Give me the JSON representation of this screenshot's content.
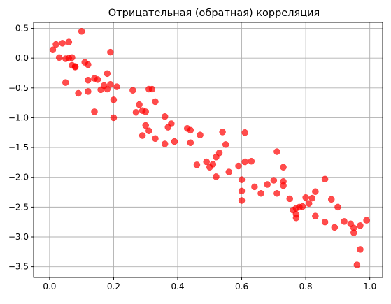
{
  "chart_data": {
    "type": "scatter",
    "title": "Отрицательная (обратная) корреляция",
    "xlabel": "",
    "ylabel": "",
    "xlim": [
      -0.05,
      1.04
    ],
    "ylim": [
      -3.68,
      0.6
    ],
    "x_ticks": [
      0.0,
      0.2,
      0.4,
      0.6,
      0.8,
      1.0
    ],
    "x_tick_labels": [
      "0.0",
      "0.2",
      "0.4",
      "0.6",
      "0.8",
      "1.0"
    ],
    "y_ticks": [
      0.5,
      0.0,
      -0.5,
      -1.0,
      -1.5,
      -2.0,
      -2.5,
      -3.0,
      -3.5
    ],
    "y_tick_labels": [
      "0.5",
      "0.0",
      "−0.5",
      "−1.0",
      "−1.5",
      "−2.0",
      "−2.5",
      "−3.0",
      "−3.5"
    ],
    "grid": true,
    "marker_color": "#ff0000",
    "marker_alpha": 0.7,
    "points": [
      [
        0.01,
        0.14
      ],
      [
        0.02,
        0.23
      ],
      [
        0.03,
        0.01
      ],
      [
        0.04,
        0.25
      ],
      [
        0.05,
        -0.01
      ],
      [
        0.06,
        0.27
      ],
      [
        0.05,
        -0.41
      ],
      [
        0.06,
        0.0
      ],
      [
        0.07,
        -0.12
      ],
      [
        0.07,
        0.01
      ],
      [
        0.08,
        -0.15
      ],
      [
        0.08,
        -0.14
      ],
      [
        0.09,
        -0.59
      ],
      [
        0.1,
        0.45
      ],
      [
        0.11,
        -0.07
      ],
      [
        0.12,
        -0.11
      ],
      [
        0.12,
        -0.56
      ],
      [
        0.12,
        -0.37
      ],
      [
        0.14,
        -0.34
      ],
      [
        0.14,
        -0.9
      ],
      [
        0.15,
        -0.36
      ],
      [
        0.16,
        -0.53
      ],
      [
        0.17,
        -0.46
      ],
      [
        0.18,
        -0.26
      ],
      [
        0.18,
        -0.52
      ],
      [
        0.19,
        0.1
      ],
      [
        0.19,
        -0.44
      ],
      [
        0.2,
        -0.7
      ],
      [
        0.2,
        -1.0
      ],
      [
        0.21,
        -0.48
      ],
      [
        0.26,
        -0.54
      ],
      [
        0.27,
        -0.91
      ],
      [
        0.28,
        -0.78
      ],
      [
        0.29,
        -0.88
      ],
      [
        0.3,
        -1.13
      ],
      [
        0.3,
        -0.9
      ],
      [
        0.29,
        -1.3
      ],
      [
        0.31,
        -1.22
      ],
      [
        0.31,
        -0.52
      ],
      [
        0.32,
        -0.52
      ],
      [
        0.33,
        -0.73
      ],
      [
        0.33,
        -1.35
      ],
      [
        0.36,
        -1.44
      ],
      [
        0.36,
        -0.98
      ],
      [
        0.37,
        -1.16
      ],
      [
        0.38,
        -1.1
      ],
      [
        0.39,
        -1.4
      ],
      [
        0.43,
        -1.18
      ],
      [
        0.44,
        -1.21
      ],
      [
        0.44,
        -1.42
      ],
      [
        0.46,
        -1.79
      ],
      [
        0.47,
        -1.29
      ],
      [
        0.49,
        -1.74
      ],
      [
        0.5,
        -1.83
      ],
      [
        0.51,
        -1.78
      ],
      [
        0.52,
        -1.99
      ],
      [
        0.52,
        -1.66
      ],
      [
        0.53,
        -1.59
      ],
      [
        0.54,
        -1.24
      ],
      [
        0.55,
        -1.45
      ],
      [
        0.56,
        -1.91
      ],
      [
        0.59,
        -1.81
      ],
      [
        0.6,
        -2.23
      ],
      [
        0.6,
        -2.39
      ],
      [
        0.6,
        -2.04
      ],
      [
        0.61,
        -1.25
      ],
      [
        0.61,
        -1.74
      ],
      [
        0.63,
        -1.73
      ],
      [
        0.64,
        -2.16
      ],
      [
        0.66,
        -2.27
      ],
      [
        0.68,
        -2.12
      ],
      [
        0.7,
        -2.05
      ],
      [
        0.71,
        -1.57
      ],
      [
        0.71,
        -2.27
      ],
      [
        0.73,
        -2.07
      ],
      [
        0.73,
        -2.14
      ],
      [
        0.73,
        -1.83
      ],
      [
        0.75,
        -2.36
      ],
      [
        0.76,
        -2.55
      ],
      [
        0.77,
        -2.62
      ],
      [
        0.77,
        -2.68
      ],
      [
        0.77,
        -2.52
      ],
      [
        0.78,
        -2.5
      ],
      [
        0.79,
        -2.49
      ],
      [
        0.8,
        -2.34
      ],
      [
        0.81,
        -2.44
      ],
      [
        0.82,
        -2.35
      ],
      [
        0.83,
        -2.65
      ],
      [
        0.83,
        -2.24
      ],
      [
        0.86,
        -2.03
      ],
      [
        0.86,
        -2.75
      ],
      [
        0.88,
        -2.37
      ],
      [
        0.89,
        -2.84
      ],
      [
        0.9,
        -2.5
      ],
      [
        0.92,
        -2.74
      ],
      [
        0.94,
        -2.78
      ],
      [
        0.95,
        -2.85
      ],
      [
        0.95,
        -2.93
      ],
      [
        0.96,
        -3.47
      ],
      [
        0.97,
        -3.21
      ],
      [
        0.97,
        -2.81
      ],
      [
        0.99,
        -2.72
      ]
    ]
  }
}
